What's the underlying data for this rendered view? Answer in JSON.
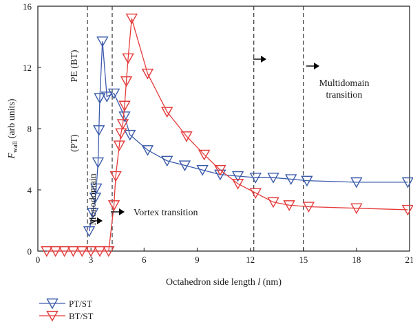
{
  "chart_data": {
    "type": "line",
    "ylabel_main": "F",
    "ylabel_sub": "wall",
    "ylabel_rest": " (arb units)",
    "xlabel_main": "Octahedron side length ",
    "xlabel_var": "l",
    "xlabel_unit": " (nm)",
    "xlim": [
      0,
      21
    ],
    "ylim": [
      0,
      16
    ],
    "x_ticks": [
      0,
      3,
      6,
      9,
      12,
      15,
      18,
      21
    ],
    "y_ticks": [
      0,
      4,
      8,
      12,
      16
    ],
    "grid": false,
    "legend_position": "bottom-left",
    "dashed_lines_x": [
      2.8,
      4.2,
      12.2,
      15.0
    ],
    "series": [
      {
        "name": "PT/ST",
        "color": "#3a5bab",
        "x": [
          2.9,
          3.1,
          3.25,
          3.3,
          3.4,
          3.45,
          3.5,
          3.65,
          3.9,
          4.3,
          4.9,
          5.2,
          6.2,
          7.3,
          8.3,
          9.3,
          10.3,
          11.3,
          12.3,
          13.3,
          14.3,
          15.2,
          18.0,
          20.9
        ],
        "y": [
          1.3,
          2.5,
          3.5,
          4.1,
          5.8,
          7.9,
          10.0,
          13.7,
          10.1,
          10.3,
          8.8,
          7.6,
          6.6,
          5.9,
          5.6,
          5.3,
          5.0,
          4.9,
          4.8,
          4.8,
          4.7,
          4.6,
          4.5,
          4.5
        ]
      },
      {
        "name": "BT/ST",
        "color": "#e53a3a",
        "x": [
          0.5,
          1.0,
          1.5,
          2.0,
          2.5,
          3.0,
          3.5,
          4.0,
          4.3,
          4.4,
          4.6,
          4.7,
          4.8,
          4.9,
          5.0,
          5.1,
          5.3,
          6.2,
          7.3,
          8.4,
          9.4,
          10.3,
          11.3,
          12.3,
          13.3,
          14.2,
          15.3,
          18.0,
          20.9
        ],
        "y": [
          0,
          0,
          0,
          0,
          0,
          0,
          0,
          0,
          3.0,
          4.9,
          6.9,
          7.7,
          8.3,
          9.5,
          11.1,
          12.6,
          15.2,
          11.6,
          9.1,
          7.5,
          6.3,
          5.3,
          4.4,
          3.8,
          3.2,
          3.0,
          2.9,
          2.8,
          2.7
        ]
      }
    ],
    "annotations": {
      "monodomain": "Monodomain",
      "pt": "(PT)",
      "pe_bt": "PE (BT)",
      "vortex": "Vortex transition",
      "multidomain_line1": "Multidomain",
      "multidomain_line2": "transition"
    }
  }
}
